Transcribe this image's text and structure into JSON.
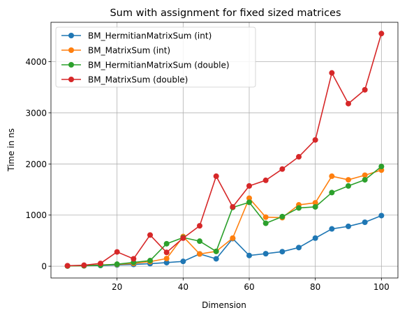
{
  "chart_data": {
    "type": "line",
    "title": "Sum with assignment for fixed sized matrices",
    "xlabel": "Dimension",
    "ylabel": "Time in ns",
    "xlim": [
      0,
      105
    ],
    "ylim": [
      -230,
      4770
    ],
    "xticks": [
      20,
      40,
      60,
      80,
      100
    ],
    "yticks": [
      0,
      1000,
      2000,
      3000,
      4000
    ],
    "grid": true,
    "legend_position": "upper-left",
    "x": [
      5,
      10,
      15,
      20,
      25,
      30,
      35,
      40,
      45,
      50,
      55,
      60,
      65,
      70,
      75,
      80,
      85,
      90,
      95,
      100
    ],
    "series": [
      {
        "name": "BM_HermitianMatrixSum (int)",
        "color": "#1f77b4",
        "values": [
          5,
          10,
          15,
          25,
          35,
          50,
          70,
          95,
          240,
          145,
          540,
          210,
          245,
          285,
          365,
          550,
          730,
          780,
          860,
          990
        ]
      },
      {
        "name": "BM_MatrixSum (int)",
        "color": "#ff7f0e",
        "values": [
          5,
          10,
          25,
          35,
          55,
          90,
          150,
          580,
          240,
          290,
          550,
          1330,
          960,
          950,
          1200,
          1240,
          1760,
          1690,
          1780,
          1880
        ]
      },
      {
        "name": "BM_HermitianMatrixSum (double)",
        "color": "#2ca02c",
        "values": [
          5,
          10,
          20,
          40,
          75,
          110,
          440,
          560,
          490,
          290,
          1150,
          1250,
          840,
          970,
          1140,
          1160,
          1440,
          1570,
          1690,
          1950
        ]
      },
      {
        "name": "BM_MatrixSum (double)",
        "color": "#d62728",
        "values": [
          10,
          20,
          55,
          280,
          145,
          610,
          270,
          550,
          790,
          1760,
          1160,
          1570,
          1680,
          1900,
          2140,
          2470,
          3780,
          3180,
          3450,
          4550
        ]
      }
    ]
  }
}
